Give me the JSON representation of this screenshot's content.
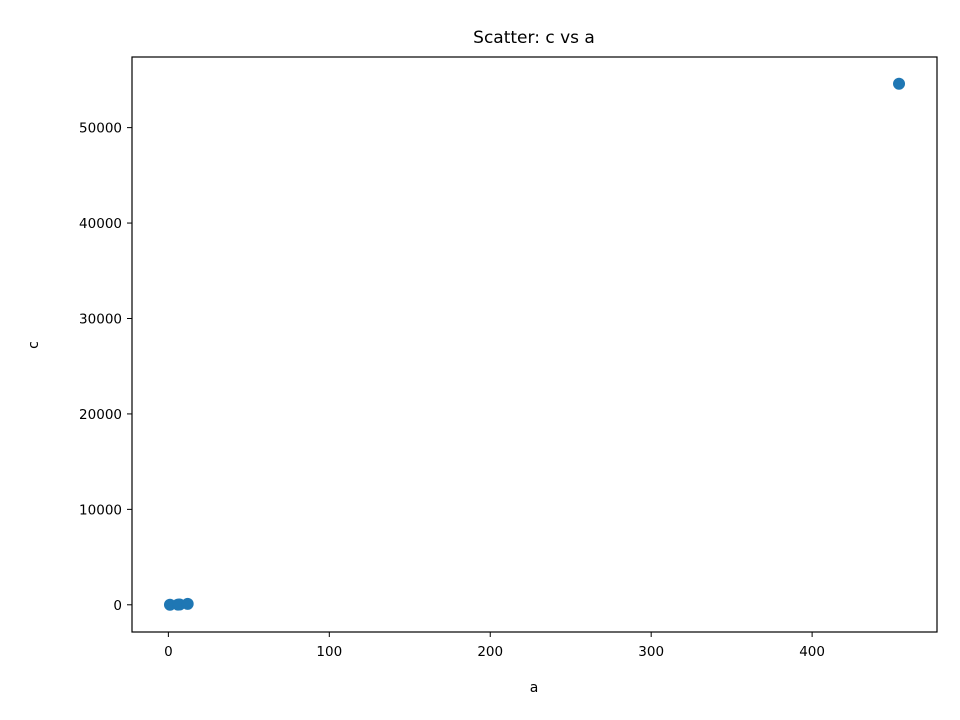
{
  "chart_data": {
    "type": "scatter",
    "title": "Scatter: c vs a",
    "xlabel": "a",
    "ylabel": "c",
    "xlim": [
      -22.6,
      477.6
    ],
    "ylim": [
      -2850,
      57400
    ],
    "x_ticks": [
      0,
      100,
      200,
      300,
      400
    ],
    "y_ticks": [
      0,
      10000,
      20000,
      30000,
      40000,
      50000
    ],
    "x_tick_labels": [
      "0",
      "100",
      "200",
      "300",
      "400"
    ],
    "y_tick_labels": [
      "0",
      "10000",
      "20000",
      "30000",
      "40000",
      "50000"
    ],
    "grid": false,
    "legend": "none",
    "series": [
      {
        "color": "#1f77b4",
        "points": [
          {
            "x": 1,
            "y": 1
          },
          {
            "x": 6,
            "y": 20
          },
          {
            "x": 7,
            "y": 30
          },
          {
            "x": 12,
            "y": 100
          },
          {
            "x": 454,
            "y": 54600
          }
        ]
      }
    ]
  }
}
